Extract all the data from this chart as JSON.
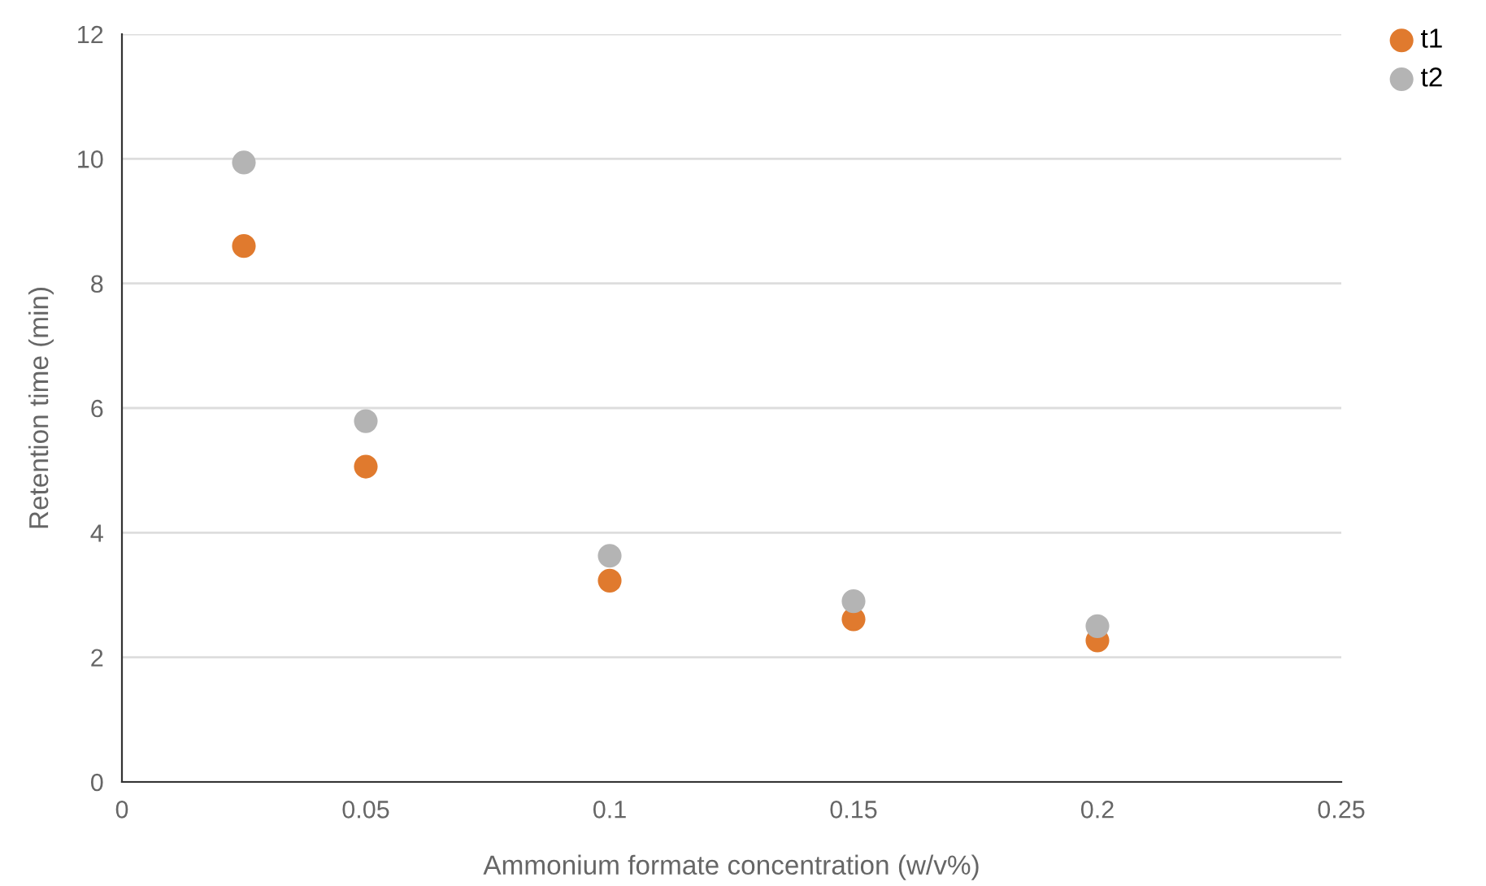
{
  "chart_data": {
    "type": "scatter",
    "xlabel": "Ammonium formate concentration (w/v%)",
    "ylabel": "Retention time (min)",
    "x": [
      0.025,
      0.05,
      0.1,
      0.15,
      0.2
    ],
    "series": [
      {
        "name": "t1",
        "color": "#e07a2e",
        "values": [
          8.6,
          5.06,
          3.23,
          2.61,
          2.27
        ]
      },
      {
        "name": "t2",
        "color": "#b4b4b4",
        "values": [
          9.94,
          5.79,
          3.63,
          2.9,
          2.5
        ]
      }
    ],
    "xlim": [
      0,
      0.25
    ],
    "xticks": [
      0,
      0.05,
      0.1,
      0.15,
      0.2,
      0.25
    ],
    "ylim": [
      0,
      12
    ],
    "yticks": [
      0,
      2,
      4,
      6,
      8,
      10,
      12
    ],
    "grid": "y",
    "legend": "top right",
    "marker": "circle"
  }
}
